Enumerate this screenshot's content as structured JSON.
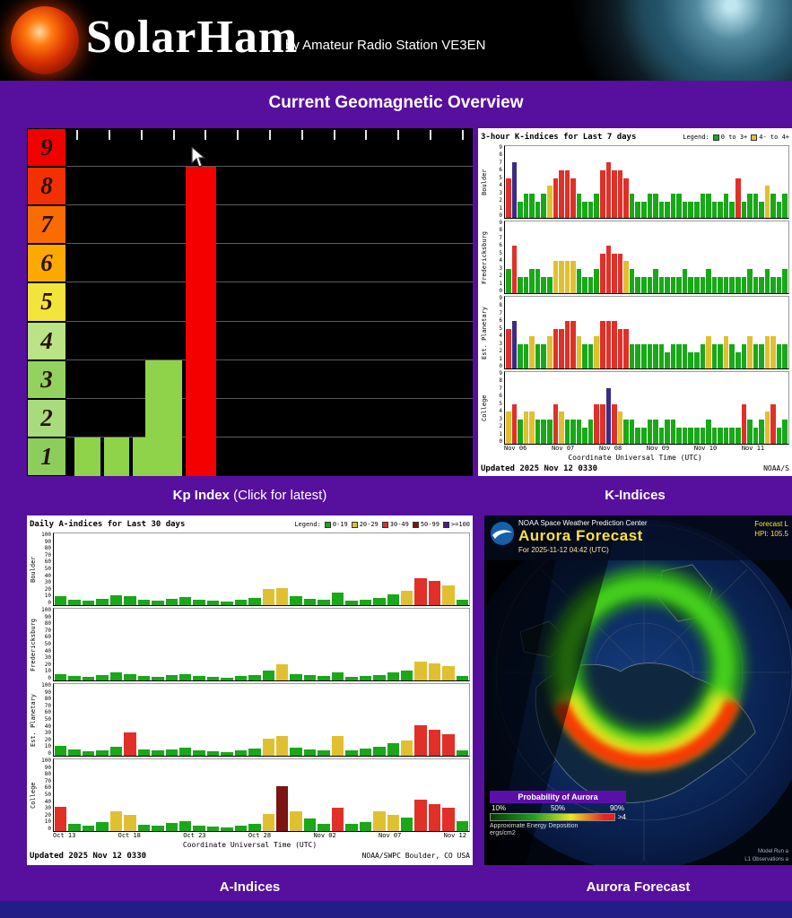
{
  "header": {
    "logo_text": "SolarHam",
    "subtitle": "by Amateur Radio Station VE3EN"
  },
  "title_bar": {
    "title": "Current Geomagnetic Overview"
  },
  "captions": {
    "kp_bold": "Kp Index",
    "kp_rest": " (Click for latest)",
    "k_indices": "K-Indices",
    "a_indices": "A-Indices",
    "aurora": "Aurora Forecast"
  },
  "chart_data": [
    {
      "id": "kp",
      "type": "bar",
      "title": "Kp Index",
      "ylim": [
        0,
        9
      ],
      "scale": [
        {
          "label": "9",
          "color": "#f10000"
        },
        {
          "label": "8",
          "color": "#f33000"
        },
        {
          "label": "7",
          "color": "#fa6c00"
        },
        {
          "label": "6",
          "color": "#fca902"
        },
        {
          "label": "5",
          "color": "#f2e43b"
        },
        {
          "label": "4",
          "color": "#b9e385"
        },
        {
          "label": "3",
          "color": "#93d25e"
        },
        {
          "label": "2",
          "color": "#a8db7c"
        },
        {
          "label": "1",
          "color": "#8ccd5c"
        }
      ],
      "bars": [
        {
          "left_pct": 2.0,
          "width_pct": 6.3,
          "value": 1,
          "color": "#8fd34a"
        },
        {
          "left_pct": 9.2,
          "width_pct": 6.3,
          "value": 1,
          "color": "#8fd34a"
        },
        {
          "left_pct": 16.4,
          "width_pct": 6.3,
          "value": 1,
          "color": "#8fd34a"
        },
        {
          "left_pct": 19.5,
          "width_pct": 9.0,
          "value": 3,
          "color": "#8fd34a"
        },
        {
          "left_pct": 29.3,
          "width_pct": 7.6,
          "value": 8,
          "color": "#f40000"
        }
      ]
    },
    {
      "id": "k_indices",
      "type": "bar-multi",
      "title": "3-hour K-indices for Last 7 days",
      "legend_label": "Legend:",
      "legend": [
        {
          "label": "0 to 3+",
          "color": "#18a818"
        },
        {
          "label": "4- to 4+",
          "color": "#e0c030"
        }
      ],
      "ylim": [
        0,
        9
      ],
      "yticks": [
        9,
        8,
        7,
        6,
        5,
        4,
        3,
        2,
        1,
        0
      ],
      "x_labels": [
        "Nov 06",
        "Nov 07",
        "Nov 08",
        "Nov 09",
        "Nov 10",
        "Nov 11"
      ],
      "xlabel": "Coordinate Universal Time (UTC)",
      "updated": "Updated 2025 Nov 12 0330",
      "source": "NOAA/S",
      "colors": {
        "low": "#18a818",
        "mid": "#e0c030",
        "high": "#e03028",
        "special": "#3a2c86"
      },
      "stations": [
        {
          "name": "Boulder",
          "special": [
            1
          ],
          "values": [
            5,
            7,
            2,
            3,
            3,
            2,
            3,
            4,
            5,
            6,
            6,
            5,
            3,
            2,
            2,
            3,
            6,
            7,
            6,
            6,
            5,
            3,
            2,
            2,
            3,
            3,
            2,
            2,
            3,
            3,
            2,
            2,
            2,
            3,
            3,
            2,
            2,
            3,
            2,
            5,
            2,
            3,
            3,
            2,
            4,
            3,
            2,
            3
          ]
        },
        {
          "name": "Fredericksburg",
          "special": [],
          "values": [
            3,
            6,
            2,
            2,
            3,
            3,
            2,
            2,
            4,
            4,
            4,
            4,
            3,
            2,
            2,
            3,
            5,
            6,
            5,
            5,
            4,
            3,
            2,
            2,
            2,
            3,
            2,
            2,
            2,
            2,
            3,
            2,
            2,
            2,
            3,
            2,
            2,
            2,
            2,
            2,
            2,
            3,
            2,
            2,
            3,
            2,
            2,
            3
          ]
        },
        {
          "name": "Est. Planetary",
          "special": [
            1
          ],
          "values": [
            5,
            6,
            3,
            3,
            4,
            3,
            3,
            4,
            5,
            5,
            6,
            6,
            4,
            3,
            3,
            4,
            6,
            6,
            6,
            5,
            5,
            3,
            3,
            3,
            3,
            3,
            3,
            2,
            3,
            3,
            3,
            2,
            2,
            3,
            4,
            3,
            3,
            4,
            3,
            2,
            3,
            4,
            3,
            3,
            4,
            4,
            3,
            3
          ]
        },
        {
          "name": "College",
          "special": [
            17
          ],
          "values": [
            4,
            5,
            3,
            4,
            4,
            3,
            3,
            3,
            5,
            4,
            3,
            3,
            3,
            2,
            3,
            5,
            5,
            7,
            5,
            4,
            3,
            3,
            2,
            2,
            3,
            3,
            2,
            3,
            3,
            2,
            2,
            2,
            2,
            2,
            3,
            2,
            2,
            2,
            2,
            2,
            5,
            3,
            2,
            3,
            4,
            5,
            2,
            3
          ]
        }
      ]
    },
    {
      "id": "a_indices",
      "type": "bar-multi",
      "title": "Daily A-indices for Last 30 days",
      "legend_label": "Legend:",
      "legend": [
        {
          "label": "0-19",
          "color": "#18a818"
        },
        {
          "label": "20-29",
          "color": "#e0c030"
        },
        {
          "label": "30-49",
          "color": "#e03028"
        },
        {
          "label": "50-99",
          "color": "#7c1414"
        },
        {
          "label": ">=100",
          "color": "#46207e"
        }
      ],
      "ylim": [
        0,
        100
      ],
      "yticks": [
        100,
        90,
        80,
        70,
        60,
        50,
        40,
        30,
        20,
        10,
        0
      ],
      "x_labels": [
        "Oct 13",
        "Oct 18",
        "Oct 23",
        "Oct 28",
        "Nov 02",
        "Nov 07",
        "Nov 12"
      ],
      "xlabel": "Coordinate Universal Time (UTC)",
      "updated": "Updated 2025 Nov 12 0330",
      "source": "NOAA/SWPC Boulder, CO USA",
      "colors": {
        "green": "#18a818",
        "yellow": "#e0c030",
        "red": "#e03028",
        "darkred": "#7c1414",
        "purple": "#46207e"
      },
      "stations": [
        {
          "name": "Boulder",
          "values": [
            12,
            8,
            6,
            9,
            14,
            12,
            8,
            6,
            9,
            11,
            7,
            6,
            5,
            8,
            10,
            22,
            24,
            12,
            9,
            8,
            18,
            6,
            8,
            10,
            15,
            20,
            38,
            34,
            28,
            8
          ]
        },
        {
          "name": "Fredericksburg",
          "values": [
            9,
            6,
            5,
            7,
            11,
            9,
            6,
            5,
            7,
            9,
            6,
            5,
            4,
            6,
            8,
            14,
            22,
            9,
            7,
            6,
            11,
            5,
            6,
            8,
            11,
            14,
            26,
            24,
            20,
            6
          ]
        },
        {
          "name": "Est. Planetary",
          "values": [
            14,
            9,
            6,
            8,
            12,
            32,
            9,
            7,
            9,
            11,
            7,
            6,
            5,
            8,
            10,
            24,
            28,
            11,
            9,
            8,
            28,
            8,
            10,
            12,
            17,
            21,
            42,
            36,
            30,
            8
          ]
        },
        {
          "name": "College",
          "values": [
            34,
            10,
            8,
            12,
            28,
            22,
            9,
            8,
            11,
            14,
            8,
            6,
            5,
            8,
            10,
            24,
            62,
            28,
            18,
            10,
            32,
            10,
            12,
            28,
            22,
            19,
            44,
            38,
            33,
            14
          ]
        }
      ]
    }
  ],
  "aurora": {
    "agency": "NOAA Space Weather Prediction Center",
    "title": "Aurora Forecast",
    "subtitle": "For 2025-11-12 04:42 (UTC)",
    "top_right_1": "Forecast L",
    "top_right_2": "HPI: 105.5",
    "legend_title": "Probability of Aurora",
    "legend_ticks": [
      "10%",
      "50%",
      "90%"
    ],
    "energy_label_1": "Approximate Energy Deposition",
    "energy_label_2": "ergs/cm2",
    "energy_max": ">4",
    "footer_1": "Model Run a",
    "footer_2": "L1 Observations a"
  }
}
